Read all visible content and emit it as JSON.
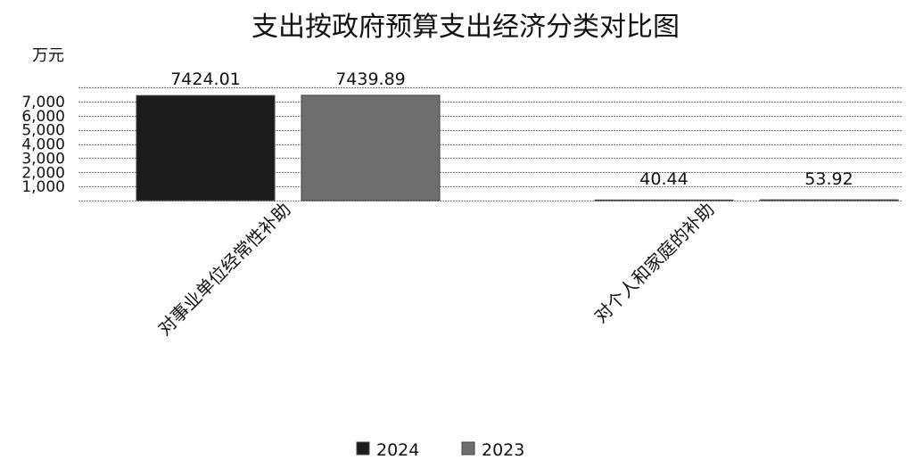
{
  "chart_data": {
    "type": "bar",
    "title": "支出按政府预算支出经济分类对比图",
    "unit_label": "万元",
    "categories": [
      "对事业单位经常性补助",
      "对个人和家庭的补助"
    ],
    "series": [
      {
        "name": "2024",
        "values": [
          7424.01,
          40.44
        ],
        "color": "#1c1c1c",
        "value_labels": [
          "7424.01",
          "40.44"
        ]
      },
      {
        "name": "2023",
        "values": [
          7439.89,
          53.92
        ],
        "color": "#6e6e6e",
        "value_labels": [
          "7439.89",
          "53.92"
        ]
      }
    ],
    "y_ticks": [
      1000,
      2000,
      3000,
      4000,
      5000,
      6000,
      7000
    ],
    "y_tick_labels": [
      "1,000",
      "2,000",
      "3,000",
      "4,000",
      "5,000",
      "6,000",
      "7,000"
    ],
    "ylim": [
      0,
      8000
    ],
    "grid": true,
    "legend_position": "bottom"
  }
}
